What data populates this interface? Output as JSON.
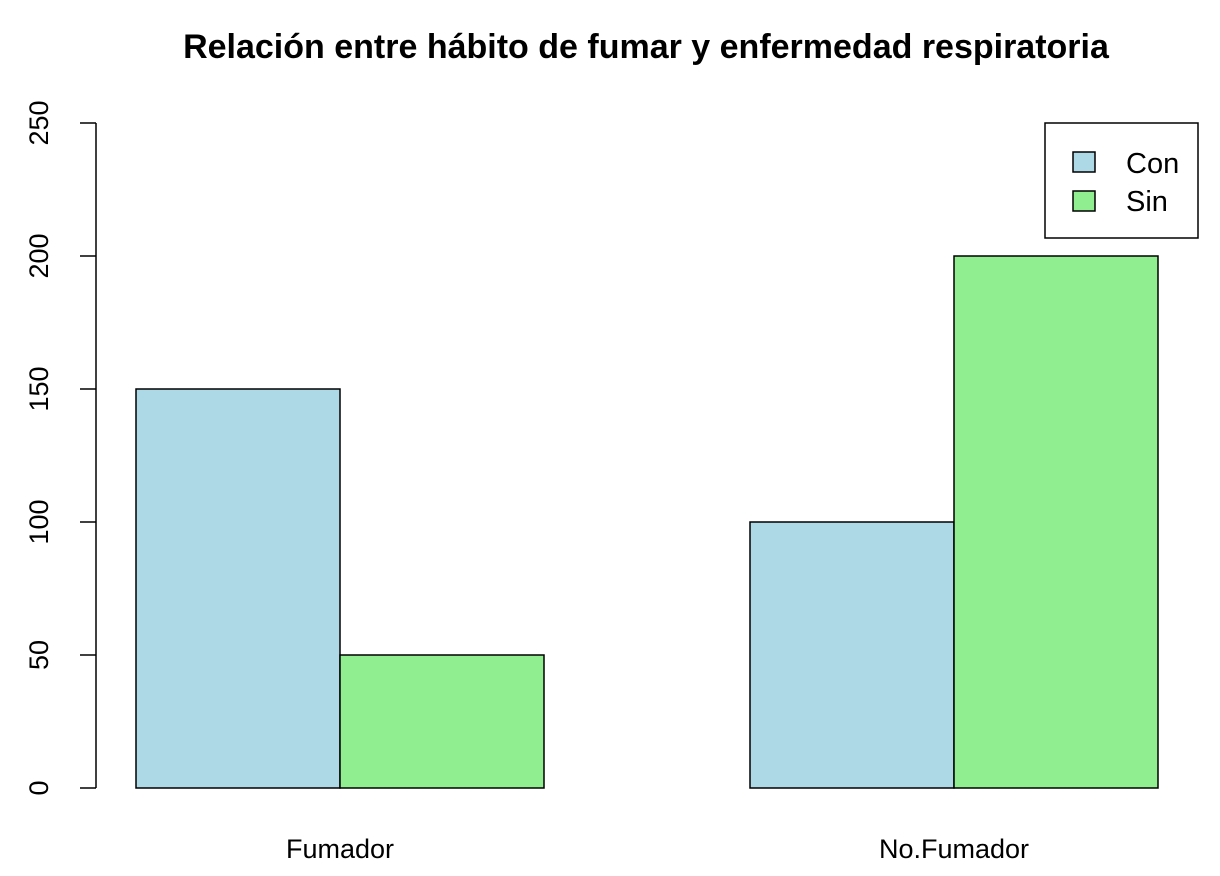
{
  "chart_data": {
    "type": "bar",
    "title": "Relación entre hábito de fumar y enfermedad respiratoria",
    "xlabel": "",
    "ylabel": "",
    "categories": [
      "Fumador",
      "No.Fumador"
    ],
    "series": [
      {
        "name": "Con",
        "values": [
          150,
          100
        ],
        "color": "#add8e6"
      },
      {
        "name": "Sin",
        "values": [
          50,
          200
        ],
        "color": "#90ee90"
      }
    ],
    "ylim": [
      0,
      250
    ],
    "yticks": [
      0,
      50,
      100,
      150,
      200,
      250
    ],
    "grid": false,
    "legend_position": "top-right",
    "bar_mode": "grouped"
  }
}
